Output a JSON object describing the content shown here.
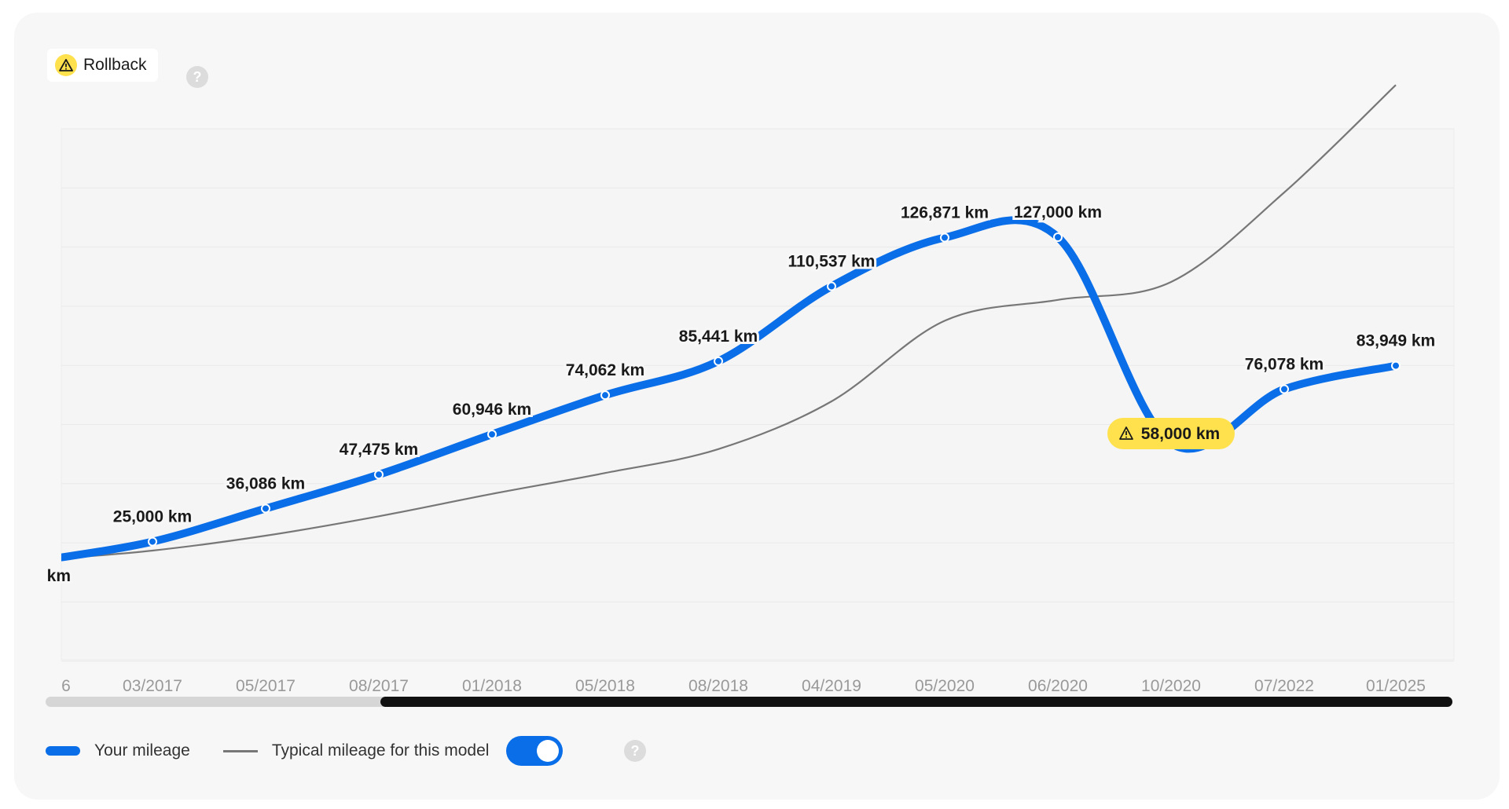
{
  "badge": {
    "label": "Rollback",
    "icon": "warning-icon",
    "help_icon": "help-icon"
  },
  "chart_data": {
    "type": "line",
    "categories": [
      "6",
      "03/2017",
      "05/2017",
      "08/2017",
      "01/2018",
      "05/2018",
      "08/2018",
      "04/2019",
      "05/2020",
      "06/2020",
      "10/2020",
      "07/2022",
      "01/2025"
    ],
    "series": [
      {
        "name": "Your mileage",
        "color": "#0a6ee8",
        "values": [
          null,
          25000,
          36086,
          47475,
          60946,
          74062,
          85441,
          110537,
          126871,
          127000,
          58000,
          76078,
          83949
        ],
        "labels": [
          "km",
          "25,000 km",
          "36,086 km",
          "47,475 km",
          "60,946 km",
          "74,062 km",
          "85,441 km",
          "110,537 km",
          "126,871 km",
          "127,000 km",
          "58,000 km",
          "76,078 km",
          "83,949 km"
        ],
        "flagged_index": 10,
        "flag_color": "#ffe14d"
      },
      {
        "name": "Typical mileage for this model",
        "color": "#777777",
        "values": [
          19000,
          22000,
          27000,
          33500,
          41000,
          48000,
          56000,
          72000,
          99000,
          106000,
          112000,
          142000,
          178000
        ]
      }
    ],
    "ylim": [
      0,
      180000
    ],
    "grid": true,
    "legend_placement": "bottom-left"
  },
  "legend": {
    "your_mileage": "Your mileage",
    "typical_mileage": "Typical mileage for this model",
    "toggle_on": true,
    "help_icon": "help-icon"
  }
}
